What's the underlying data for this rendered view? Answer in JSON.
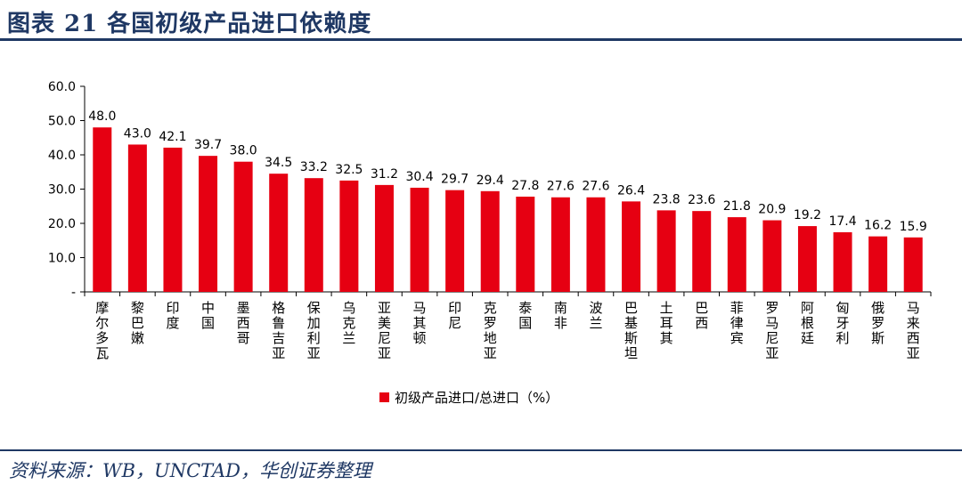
{
  "header": {
    "title": "图表 21   各国初级产品进口依赖度"
  },
  "footer": {
    "source": "资料来源：WB，UNCTAD，华创证券整理"
  },
  "chart_data": {
    "type": "bar",
    "categories": [
      "摩尔多瓦",
      "黎巴嫩",
      "印度",
      "中国",
      "墨西哥",
      "格鲁吉亚",
      "保加利亚",
      "乌克兰",
      "亚美尼亚",
      "马其顿",
      "印尼",
      "克罗地亚",
      "泰国",
      "南非",
      "波兰",
      "巴基斯坦",
      "土耳其",
      "巴西",
      "菲律宾",
      "罗马尼亚",
      "阿根廷",
      "匈牙利",
      "俄罗斯",
      "马来西亚"
    ],
    "series": [
      {
        "name": "初级产品进口/总进口（%）",
        "color": "#e60012",
        "values": [
          48.0,
          43.0,
          42.1,
          39.7,
          38.0,
          34.5,
          33.2,
          32.5,
          31.2,
          30.4,
          29.7,
          29.4,
          27.8,
          27.6,
          27.6,
          26.4,
          23.8,
          23.6,
          21.8,
          20.9,
          19.2,
          17.4,
          16.2,
          15.9
        ]
      }
    ],
    "yticks": [
      "60.0",
      "50.0",
      "40.0",
      "30.0",
      "20.0",
      "10.0",
      "-"
    ],
    "ylim": [
      0,
      60
    ],
    "grid": false,
    "legend_position": "bottom"
  }
}
